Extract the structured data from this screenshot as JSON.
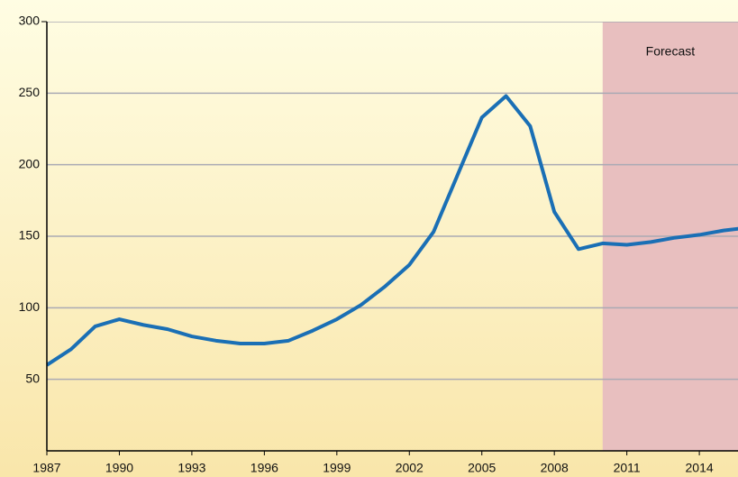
{
  "chart_data": {
    "type": "line",
    "x": [
      1987,
      1988,
      1989,
      1990,
      1991,
      1992,
      1993,
      1994,
      1995,
      1996,
      1997,
      1998,
      1999,
      2000,
      2001,
      2002,
      2003,
      2004,
      2005,
      2006,
      2007,
      2008,
      2009,
      2010,
      2011,
      2012,
      2013,
      2014,
      2015,
      2016
    ],
    "series": [
      {
        "color": "#1a6fb5",
        "values": [
          60,
          71,
          87,
          92,
          88,
          85,
          80,
          77,
          75,
          75,
          77,
          84,
          92,
          102,
          115,
          130,
          153,
          193,
          233,
          248,
          227,
          167,
          141,
          145,
          144,
          146,
          149,
          151,
          154,
          156
        ]
      }
    ],
    "xlim": [
      1987,
      2015.6
    ],
    "xticks": [
      1987,
      1990,
      1993,
      1996,
      1999,
      2002,
      2005,
      2008,
      2011,
      2014
    ],
    "ylim": [
      0,
      300
    ],
    "yticks": [
      50,
      100,
      150,
      200,
      250,
      300
    ],
    "grid": true,
    "forecast": {
      "start": 2010,
      "label": "Forecast",
      "color": "#e8bfbf"
    }
  }
}
